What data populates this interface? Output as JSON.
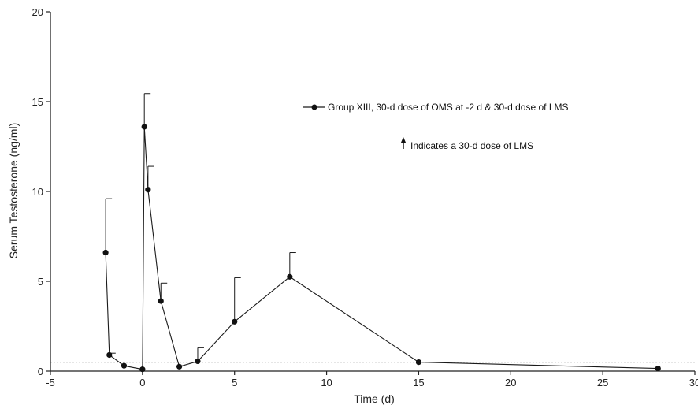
{
  "chart_data": {
    "type": "line",
    "xlabel": "Time (d)",
    "ylabel": "Serum Testosterone (ng/ml)",
    "xlim": [
      -5,
      30
    ],
    "ylim": [
      0,
      20
    ],
    "x_ticks": [
      "-5",
      "0",
      "5",
      "10",
      "15",
      "20",
      "25",
      "30"
    ],
    "y_ticks": [
      "0",
      "5",
      "10",
      "15",
      "20"
    ],
    "grid": false,
    "legend_position": "right",
    "series": [
      {
        "name": "Group XIII, 30-d dose of OMS at -2 d & 30-d dose of LMS",
        "color": "#1a1a1a",
        "points": [
          {
            "x": -2,
            "y": 6.6,
            "err": 3.0
          },
          {
            "x": -1.8,
            "y": 0.9,
            "err": 0.1
          },
          {
            "x": -1,
            "y": 0.3,
            "err": null
          },
          {
            "x": 0,
            "y": 0.1,
            "err": null
          },
          {
            "x": 0.1,
            "y": 13.6,
            "err": 1.85
          },
          {
            "x": 0.3,
            "y": 10.1,
            "err": 1.3
          },
          {
            "x": 1,
            "y": 3.9,
            "err": 1.0
          },
          {
            "x": 2,
            "y": 0.25,
            "err": null
          },
          {
            "x": 3,
            "y": 0.55,
            "err": 0.75
          },
          {
            "x": 5,
            "y": 2.75,
            "err": 2.45
          },
          {
            "x": 8,
            "y": 5.25,
            "err": 1.35
          },
          {
            "x": 15,
            "y": 0.5,
            "err": null
          },
          {
            "x": 28,
            "y": 0.15,
            "err": null
          }
        ]
      }
    ],
    "reference_line": {
      "y": 0.5,
      "style": "dotted"
    },
    "dose_markers": [
      0
    ],
    "annotation": "Indicates a 30-d dose of LMS"
  }
}
